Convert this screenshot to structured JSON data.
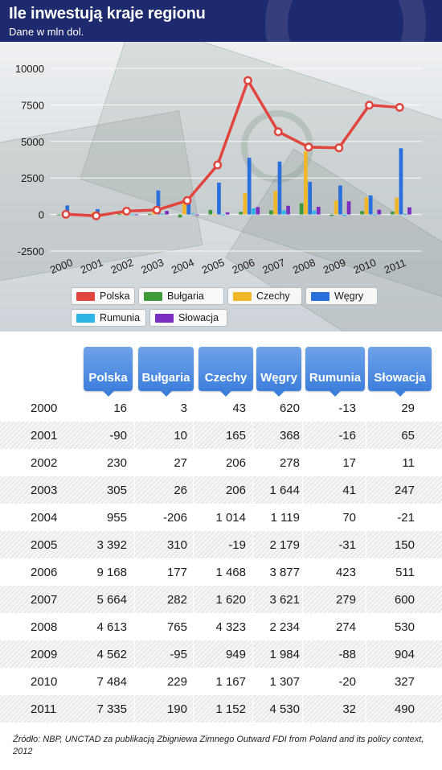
{
  "header": {
    "title": "Ile inwestują kraje regionu",
    "subtitle": "Dane w mln dol."
  },
  "colors": {
    "header_bg": "#1d2a6e",
    "column_header": "#4a89e0",
    "Polska": "#e0453e",
    "Bułgaria": "#3f9a3a",
    "Czechy": "#f0b72a",
    "Węgry": "#2a6fdc",
    "Rumunia": "#2eb4e6",
    "Słowacja": "#7a2fc0"
  },
  "chart_data": {
    "type": "bar",
    "categories": [
      "2000",
      "2001",
      "2002",
      "2003",
      "2004",
      "2005",
      "2006",
      "2007",
      "2008",
      "2009",
      "2010",
      "2011"
    ],
    "y_ticks": [
      "10000",
      "7500",
      "5000",
      "2500",
      "0",
      "-2500"
    ],
    "ylim": [
      -2500,
      10000
    ],
    "grid": true,
    "legend_position": "bottom",
    "line_series": "Polska",
    "series": [
      {
        "name": "Polska",
        "values": [
          16,
          -90,
          230,
          305,
          955,
          3392,
          9168,
          5664,
          4613,
          4562,
          7484,
          7335
        ]
      },
      {
        "name": "Bułgaria",
        "values": [
          3,
          10,
          27,
          26,
          -206,
          310,
          177,
          282,
          765,
          -95,
          229,
          190
        ]
      },
      {
        "name": "Czechy",
        "values": [
          43,
          165,
          206,
          206,
          1014,
          -19,
          1468,
          1620,
          4323,
          949,
          1167,
          1152
        ]
      },
      {
        "name": "Węgry",
        "values": [
          620,
          368,
          278,
          1644,
          1119,
          2179,
          3877,
          3621,
          2234,
          1984,
          1307,
          4530
        ]
      },
      {
        "name": "Rumunia",
        "values": [
          -13,
          -16,
          17,
          41,
          70,
          -31,
          423,
          279,
          274,
          -88,
          -20,
          32
        ]
      },
      {
        "name": "Słowacja",
        "values": [
          29,
          65,
          11,
          247,
          -21,
          150,
          511,
          600,
          530,
          904,
          327,
          490
        ]
      }
    ]
  },
  "legend": [
    {
      "label": "Polska",
      "color": "#e0453e"
    },
    {
      "label": "Bułgaria",
      "color": "#3f9a3a"
    },
    {
      "label": "Czechy",
      "color": "#f0b72a"
    },
    {
      "label": "Węgry",
      "color": "#2a6fdc"
    },
    {
      "label": "Rumunia",
      "color": "#2eb4e6"
    },
    {
      "label": "Słowacja",
      "color": "#7a2fc0"
    }
  ],
  "table": {
    "columns": [
      "Polska",
      "Bułgaria",
      "Czechy",
      "Węgry",
      "Rumunia",
      "Słowacja"
    ],
    "rows": [
      {
        "year": "2000",
        "values": [
          "16",
          "3",
          "43",
          "620",
          "-13",
          "29"
        ]
      },
      {
        "year": "2001",
        "values": [
          "-90",
          "10",
          "165",
          "368",
          "-16",
          "65"
        ]
      },
      {
        "year": "2002",
        "values": [
          "230",
          "27",
          "206",
          "278",
          "17",
          "11"
        ]
      },
      {
        "year": "2003",
        "values": [
          "305",
          "26",
          "206",
          "1 644",
          "41",
          "247"
        ]
      },
      {
        "year": "2004",
        "values": [
          "955",
          "-206",
          "1 014",
          "1 119",
          "70",
          "-21"
        ]
      },
      {
        "year": "2005",
        "values": [
          "3 392",
          "310",
          "-19",
          "2 179",
          "-31",
          "150"
        ]
      },
      {
        "year": "2006",
        "values": [
          "9 168",
          "177",
          "1 468",
          "3 877",
          "423",
          "511"
        ]
      },
      {
        "year": "2007",
        "values": [
          "5 664",
          "282",
          "1 620",
          "3 621",
          "279",
          "600"
        ]
      },
      {
        "year": "2008",
        "values": [
          "4 613",
          "765",
          "4 323",
          "2 234",
          "274",
          "530"
        ]
      },
      {
        "year": "2009",
        "values": [
          "4 562",
          "-95",
          "949",
          "1 984",
          "-88",
          "904"
        ]
      },
      {
        "year": "2010",
        "values": [
          "7 484",
          "229",
          "1 167",
          "1 307",
          "-20",
          "327"
        ]
      },
      {
        "year": "2011",
        "values": [
          "7 335",
          "190",
          "1 152",
          "4 530",
          "32",
          "490"
        ]
      }
    ]
  },
  "source": "Źródło: NBP, UNCTAD za publikacją Zbigniewa Zimnego Outward FDI from Poland and its policy context, 2012"
}
